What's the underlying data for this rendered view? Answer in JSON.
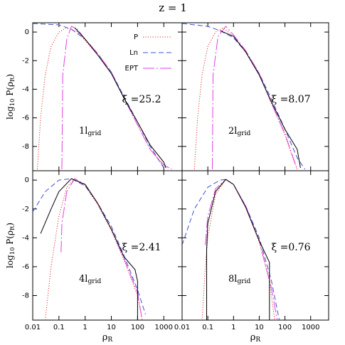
{
  "title": "z = 1",
  "xlabel": {
    "main": "ρ",
    "sub": "R"
  },
  "ylabel": {
    "pre": "log",
    "sub1": "10",
    "mid": " P(ρ",
    "sub2": "R",
    "post": ")"
  },
  "chart_data": [
    {
      "type": "line",
      "log_x": true,
      "xlim": [
        0.01,
        5000
      ],
      "ylim": [
        -9.7,
        0.65
      ],
      "xticks": [
        0.01,
        0.1,
        1,
        10,
        100,
        1000
      ],
      "yticks": [
        0,
        -2,
        -4,
        -6,
        -8
      ],
      "annotation": "ξ̄ =25.2",
      "scale_label": {
        "main": "1l",
        "sub": "grid"
      },
      "series": [
        {
          "name": "P",
          "color": "#e03030",
          "x": [
            0.015,
            0.02,
            0.03,
            0.05,
            0.1,
            0.2,
            0.5,
            1,
            3,
            10,
            30,
            100,
            300,
            1000
          ],
          "values": [
            -9.6,
            -6,
            -3,
            -1,
            0,
            0.3,
            0,
            -0.6,
            -1.6,
            -2.9,
            -4.6,
            -6.5,
            -8.2,
            -9.4
          ]
        },
        {
          "name": "Ln",
          "color": "#4050d0",
          "x": [
            0.01,
            0.1,
            0.3,
            1,
            3,
            10,
            30,
            100,
            300,
            1000
          ],
          "values": [
            0.6,
            0.5,
            0.2,
            -0.5,
            -1.5,
            -2.8,
            -4.5,
            -6.3,
            -8,
            -9.5
          ]
        },
        {
          "name": "EPT",
          "color": "#e040e0",
          "x": [
            0.13,
            0.14,
            0.2,
            0.3,
            0.5,
            1,
            3,
            10,
            30,
            100,
            300,
            1000,
            2000
          ],
          "values": [
            -9.6,
            -3,
            -0.5,
            0.4,
            0.2,
            -0.5,
            -1.5,
            -2.8,
            -4.6,
            -6.5,
            -8.2,
            -9.3,
            -9.6
          ]
        },
        {
          "color": "#000000",
          "x": [
            0.4,
            1,
            3,
            10,
            30,
            100,
            300,
            1000,
            1200
          ],
          "values": [
            0.3,
            -0.5,
            -1.6,
            -2.9,
            -4.6,
            -6.3,
            -7.9,
            -9.1,
            -9.5
          ]
        }
      ]
    },
    {
      "type": "line",
      "log_x": true,
      "xlim": [
        0.01,
        5000
      ],
      "ylim": [
        -9.7,
        0.65
      ],
      "xticks": [
        0.01,
        0.1,
        1,
        10,
        100,
        1000
      ],
      "yticks": [
        0,
        -2,
        -4,
        -6,
        -8
      ],
      "annotation": "ξ̄ =8.07",
      "scale_label": {
        "main": "2l",
        "sub": "grid"
      },
      "series": [
        {
          "color": "#e03030",
          "x": [
            0.03,
            0.04,
            0.06,
            0.1,
            0.2,
            0.4,
            1,
            3,
            10,
            30,
            100,
            200,
            300
          ],
          "values": [
            -9.6,
            -6,
            -3,
            -1,
            0,
            0.3,
            -0.3,
            -1.4,
            -3,
            -5,
            -7.2,
            -8.8,
            -9.6
          ]
        },
        {
          "color": "#4050d0",
          "x": [
            0.01,
            0.1,
            0.3,
            1,
            3,
            10,
            30,
            100,
            300,
            600
          ],
          "values": [
            0.6,
            0.4,
            0.1,
            -0.4,
            -1.4,
            -2.9,
            -4.7,
            -6.8,
            -8.8,
            -9.6
          ]
        },
        {
          "color": "#e040e0",
          "x": [
            0.15,
            0.16,
            0.25,
            0.5,
            1,
            3,
            10,
            30,
            100,
            200,
            300
          ],
          "values": [
            -9.6,
            -3,
            -0.3,
            0.4,
            -0.2,
            -1.3,
            -2.9,
            -5,
            -7.1,
            -8.7,
            -9.6
          ]
        },
        {
          "color": "#000000",
          "x": [
            0.3,
            1,
            3,
            10,
            30,
            100,
            300,
            400
          ],
          "values": [
            0.1,
            -0.3,
            -1.4,
            -3,
            -4.9,
            -6.8,
            -8.2,
            -9.5
          ]
        }
      ]
    },
    {
      "type": "line",
      "log_x": true,
      "xlim": [
        0.01,
        5000
      ],
      "ylim": [
        -9.7,
        0.65
      ],
      "xticks": [
        0.01,
        0.1,
        1,
        10,
        100,
        1000
      ],
      "yticks": [
        0,
        -2,
        -4,
        -6,
        -8
      ],
      "annotation": "ξ̄ =2.41",
      "scale_label": {
        "main": "4l",
        "sub": "grid"
      },
      "series": [
        {
          "color": "#e03030",
          "x": [
            0.03,
            0.05,
            0.1,
            0.2,
            0.4,
            1,
            3,
            10,
            30,
            100,
            150
          ],
          "values": [
            -9.7,
            -6,
            -2.5,
            -0.5,
            0.1,
            -0.4,
            -1.7,
            -3.5,
            -5.5,
            -8,
            -9.7
          ]
        },
        {
          "color": "#4050d0",
          "x": [
            0.01,
            0.03,
            0.1,
            0.3,
            1,
            3,
            10,
            30,
            100,
            200
          ],
          "values": [
            -2.2,
            -0.8,
            0,
            0.1,
            -0.4,
            -1.6,
            -3.2,
            -5.2,
            -7.6,
            -9.3
          ]
        },
        {
          "color": "#e040e0",
          "x": [
            0.12,
            0.13,
            0.2,
            0.4,
            1,
            3,
            10,
            30,
            100,
            150
          ],
          "values": [
            -5,
            -3,
            -0.8,
            0.1,
            -0.3,
            -1.6,
            -3.4,
            -5.4,
            -7.8,
            -9.7
          ]
        },
        {
          "color": "#000000",
          "x": [
            0.02,
            0.05,
            0.1,
            0.3,
            1,
            3,
            10,
            30,
            80,
            100,
            100
          ],
          "values": [
            -3.7,
            -2,
            -0.8,
            0.1,
            -0.3,
            -1.6,
            -3.4,
            -5.3,
            -6.2,
            -7,
            -9.7
          ]
        }
      ]
    },
    {
      "type": "line",
      "log_x": true,
      "xlim": [
        0.01,
        5000
      ],
      "ylim": [
        -9.7,
        0.65
      ],
      "xticks": [
        0.01,
        0.1,
        1,
        10,
        100,
        1000
      ],
      "yticks": [
        0,
        -2,
        -4,
        -6,
        -8
      ],
      "annotation": "ξ̄ =0.76",
      "scale_label": {
        "main": "8l",
        "sub": "grid"
      },
      "series": [
        {
          "color": "#e03030",
          "x": [
            0.06,
            0.08,
            0.1,
            0.2,
            0.5,
            1,
            3,
            10,
            25,
            40
          ],
          "values": [
            -9.7,
            -6,
            -4,
            -1,
            0.05,
            -0.3,
            -1.9,
            -4.3,
            -7,
            -9.7
          ]
        },
        {
          "color": "#4050d0",
          "x": [
            0.01,
            0.03,
            0.1,
            0.3,
            0.5,
            1,
            3,
            10,
            30,
            60
          ],
          "values": [
            -4.5,
            -2,
            -0.5,
            0,
            0.05,
            -0.3,
            -1.8,
            -4,
            -7,
            -9.7
          ]
        },
        {
          "color": "#e040e0",
          "x": [
            0.08,
            0.1,
            0.2,
            0.5,
            1,
            3,
            10,
            30,
            50
          ],
          "values": [
            -4.5,
            -2.5,
            -0.6,
            0.05,
            -0.3,
            -1.8,
            -4.2,
            -7.5,
            -9.7
          ]
        },
        {
          "color": "#000000",
          "x": [
            0.09,
            0.09,
            0.1,
            0.2,
            0.5,
            1,
            3,
            10,
            25,
            25
          ],
          "values": [
            -9.7,
            -4.8,
            -3,
            -0.8,
            0.05,
            -0.3,
            -1.9,
            -4.2,
            -5.7,
            -9.7
          ]
        }
      ]
    }
  ]
}
